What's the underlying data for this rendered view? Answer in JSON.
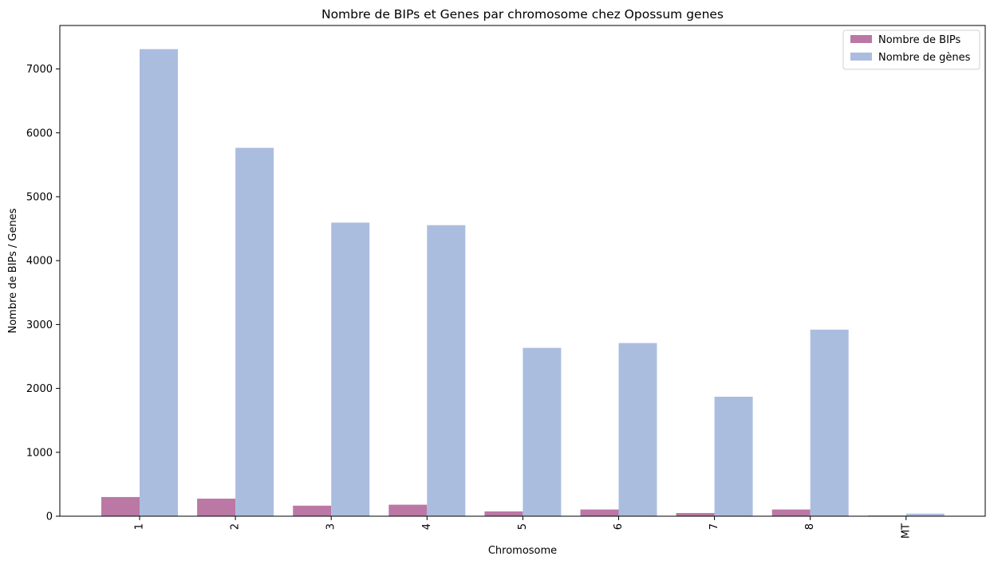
{
  "chart_data": {
    "type": "bar",
    "title": "Nombre de BIPs et Genes par chromosome chez Opossum genes",
    "xlabel": "Chromosome",
    "ylabel": "Nombre de BIPs / Genes",
    "categories": [
      "1",
      "2",
      "3",
      "4",
      "5",
      "6",
      "7",
      "8",
      "MT"
    ],
    "series": [
      {
        "name": "Nombre de BIPs",
        "color": "#bb78a5",
        "values": [
          300,
          275,
          165,
          180,
          75,
          105,
          50,
          105,
          10
        ]
      },
      {
        "name": "Nombre de gènes",
        "color": "#abbddf",
        "values": [
          7310,
          5765,
          4595,
          4555,
          2635,
          2710,
          1870,
          2920,
          40
        ]
      }
    ],
    "ylim": [
      0,
      7680
    ],
    "yticks": [
      0,
      1000,
      2000,
      3000,
      4000,
      5000,
      6000,
      7000
    ],
    "grid": false,
    "legend_position": "top-right"
  }
}
